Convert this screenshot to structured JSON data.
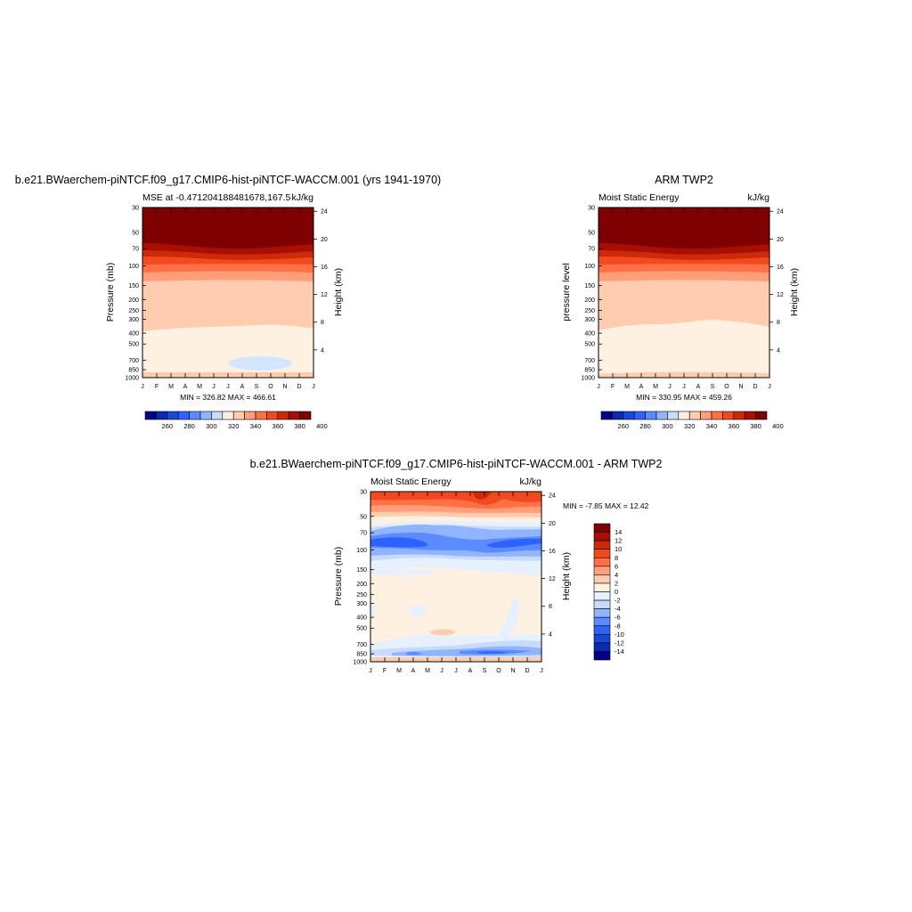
{
  "top_left": {
    "title": "b.e21.BWaerchem-piNTCF.f09_g17.CMIP6-hist-piNTCF-WACCM.001 (yrs 1941-1970)",
    "left_string": "MSE at -0.471204188481678,167.5",
    "units": "kJ/kg",
    "ylabel": "Pressure (mb)",
    "ylabel_right": "Height (km)",
    "minmax": "MIN = 326.82 MAX = 466.61"
  },
  "top_right": {
    "title": "ARM TWP2",
    "left_string": "Moist Static Energy",
    "units": "kJ/kg",
    "ylabel": "pressure level",
    "ylabel_right": "Height (km)",
    "minmax": "MIN = 330.95 MAX = 459.26"
  },
  "bottom": {
    "title": "b.e21.BWaerchem-piNTCF.f09_g17.CMIP6-hist-piNTCF-WACCM.001 - ARM TWP2",
    "left_string": "Moist Static Energy",
    "units": "kJ/kg",
    "ylabel": "Pressure (mb)",
    "ylabel_right": "Height (km)",
    "minmax": "MIN =  -7.85 MAX =  12.42"
  },
  "chart_data": [
    {
      "type": "heatmap",
      "title": "b.e21.BWaerchem-piNTCF.f09_g17.CMIP6-hist-piNTCF-WACCM.001 (yrs 1941-1970)",
      "subtitle": "MSE at -0.471204188481678,167.5",
      "units": "kJ/kg",
      "x_ticks": [
        "J",
        "F",
        "M",
        "A",
        "M",
        "J",
        "J",
        "A",
        "S",
        "O",
        "N",
        "D",
        "J"
      ],
      "y_ticks": [
        30,
        50,
        70,
        100,
        150,
        200,
        250,
        300,
        400,
        500,
        700,
        850,
        1000
      ],
      "y_scale": "log",
      "y_reversed": true,
      "y2_ticks": [
        24,
        20,
        16,
        12,
        8,
        4
      ],
      "min": 326.82,
      "max": 466.61,
      "colorbar_levels": [
        260,
        280,
        300,
        320,
        340,
        360,
        380,
        400
      ],
      "colorbar_colors": [
        "#00008b",
        "#0a2ab4",
        "#1748dc",
        "#2e62ff",
        "#5a8cff",
        "#91b4ff",
        "#c7dbff",
        "#fff1e2",
        "#ffccb0",
        "#ff9e78",
        "#ff7046",
        "#f24a1e",
        "#cd2a0a",
        "#a80f02",
        "#7e0000"
      ]
    },
    {
      "type": "heatmap",
      "title": "ARM TWP2",
      "subtitle": "Moist Static Energy",
      "units": "kJ/kg",
      "x_ticks": [
        "J",
        "F",
        "M",
        "A",
        "M",
        "J",
        "J",
        "A",
        "S",
        "O",
        "N",
        "D",
        "J"
      ],
      "y_ticks": [
        30,
        50,
        70,
        100,
        150,
        200,
        250,
        300,
        400,
        500,
        700,
        850,
        1000
      ],
      "y_scale": "log",
      "y_reversed": true,
      "y2_ticks": [
        24,
        20,
        16,
        12,
        8,
        4
      ],
      "min": 330.95,
      "max": 459.26,
      "colorbar_levels": [
        260,
        280,
        300,
        320,
        340,
        360,
        380,
        400
      ],
      "colorbar_colors": [
        "#00008b",
        "#0a2ab4",
        "#1748dc",
        "#2e62ff",
        "#5a8cff",
        "#91b4ff",
        "#c7dbff",
        "#fff1e2",
        "#ffccb0",
        "#ff9e78",
        "#ff7046",
        "#f24a1e",
        "#cd2a0a",
        "#a80f02",
        "#7e0000"
      ]
    },
    {
      "type": "heatmap",
      "title": "b.e21.BWaerchem-piNTCF.f09_g17.CMIP6-hist-piNTCF-WACCM.001 - ARM TWP2",
      "subtitle": "Moist Static Energy",
      "units": "kJ/kg",
      "x_ticks": [
        "J",
        "F",
        "M",
        "A",
        "M",
        "J",
        "J",
        "A",
        "S",
        "O",
        "N",
        "D",
        "J"
      ],
      "y_ticks": [
        30,
        50,
        70,
        100,
        150,
        200,
        250,
        300,
        400,
        500,
        700,
        850,
        1000
      ],
      "y_scale": "log",
      "y_reversed": true,
      "y2_ticks": [
        24,
        20,
        16,
        12,
        8,
        4
      ],
      "min": -7.85,
      "max": 12.42,
      "colorbar_levels": [
        14,
        12,
        10,
        8,
        6,
        4,
        2,
        0,
        -2,
        -4,
        -6,
        -8,
        -10,
        -12,
        -14
      ],
      "colorbar_colors": [
        "#7e0000",
        "#a80f02",
        "#cd2a0a",
        "#f24a1e",
        "#ff7046",
        "#ff9e78",
        "#ffccb0",
        "#fff1e2",
        "#e6f0ff",
        "#c7dbff",
        "#91b4ff",
        "#5a8cff",
        "#2e62ff",
        "#1748dc",
        "#0a2ab4",
        "#00008b"
      ]
    }
  ]
}
